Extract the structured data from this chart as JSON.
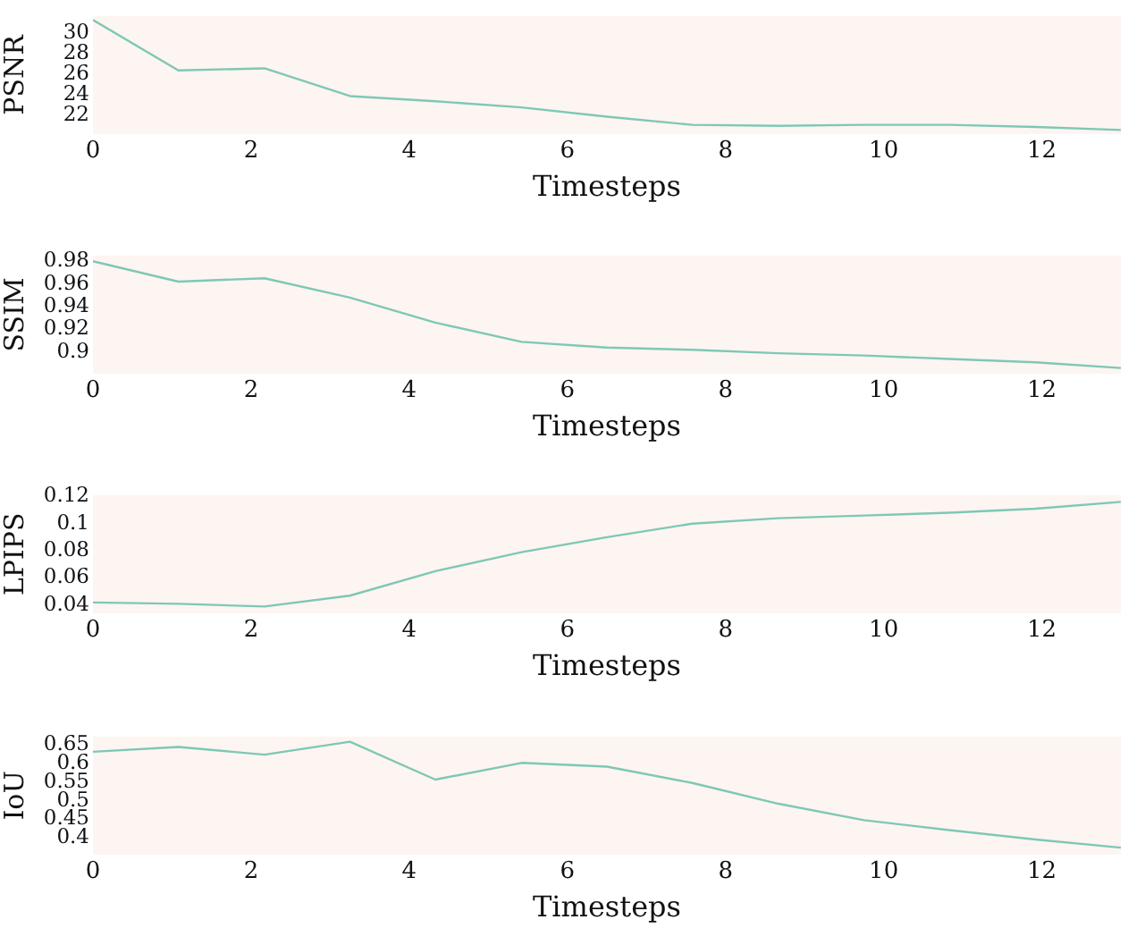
{
  "chart_data": [
    {
      "type": "line",
      "xlabel": "Timesteps",
      "ylabel": "PSNR",
      "x": [
        0,
        1.08,
        2.17,
        3.25,
        4.33,
        5.42,
        6.5,
        7.58,
        8.67,
        9.75,
        10.83,
        11.92,
        13
      ],
      "series": [
        {
          "color": "#7ec8b4",
          "values": [
            31.3,
            26.4,
            26.6,
            23.9,
            23.4,
            22.8,
            21.9,
            21.1,
            21.0,
            21.1,
            21.1,
            20.9,
            20.6
          ]
        }
      ],
      "xlim": [
        0,
        13
      ],
      "xticks": [
        0,
        2,
        4,
        6,
        8,
        10,
        12
      ],
      "ylim": [
        20.2,
        31.7
      ],
      "yticks": [
        22,
        24,
        26,
        28,
        30
      ],
      "grid": false,
      "legend": false,
      "marker": "none",
      "line_style": "solid"
    },
    {
      "type": "line",
      "xlabel": "Timesteps",
      "ylabel": "SSIM",
      "x": [
        0,
        1.08,
        2.17,
        3.25,
        4.33,
        5.42,
        6.5,
        7.58,
        8.67,
        9.75,
        10.83,
        11.92,
        13
      ],
      "series": [
        {
          "color": "#7ec8b4",
          "values": [
            0.98,
            0.962,
            0.965,
            0.948,
            0.926,
            0.909,
            0.904,
            0.902,
            0.899,
            0.897,
            0.894,
            0.891,
            0.886
          ]
        }
      ],
      "xlim": [
        0,
        13
      ],
      "xticks": [
        0,
        2,
        4,
        6,
        8,
        10,
        12
      ],
      "ylim": [
        0.881,
        0.985
      ],
      "yticks": [
        0.9,
        0.92,
        0.94,
        0.96,
        0.98
      ],
      "grid": false,
      "legend": false,
      "marker": "none",
      "line_style": "solid"
    },
    {
      "type": "line",
      "xlabel": "Timesteps",
      "ylabel": "LPIPS",
      "x": [
        0,
        1.08,
        2.17,
        3.25,
        4.33,
        5.42,
        6.5,
        7.58,
        8.67,
        9.75,
        10.83,
        11.92,
        13
      ],
      "series": [
        {
          "color": "#7ec8b4",
          "values": [
            0.042,
            0.041,
            0.039,
            0.047,
            0.065,
            0.079,
            0.09,
            0.1,
            0.104,
            0.106,
            0.108,
            0.111,
            0.116
          ]
        }
      ],
      "xlim": [
        0,
        13
      ],
      "xticks": [
        0,
        2,
        4,
        6,
        8,
        10,
        12
      ],
      "ylim": [
        0.034,
        0.121
      ],
      "yticks": [
        0.04,
        0.06,
        0.08,
        0.1,
        0.12
      ],
      "grid": false,
      "legend": false,
      "marker": "none",
      "line_style": "solid"
    },
    {
      "type": "line",
      "xlabel": "Timesteps",
      "ylabel": "IoU",
      "x": [
        0,
        1.08,
        2.17,
        3.25,
        4.33,
        5.42,
        6.5,
        7.58,
        8.67,
        9.75,
        10.83,
        11.92,
        13
      ],
      "series": [
        {
          "color": "#7ec8b4",
          "values": [
            0.632,
            0.645,
            0.624,
            0.659,
            0.557,
            0.602,
            0.592,
            0.548,
            0.492,
            0.448,
            0.421,
            0.396,
            0.374
          ]
        }
      ],
      "xlim": [
        0,
        13
      ],
      "xticks": [
        0,
        2,
        4,
        6,
        8,
        10,
        12
      ],
      "ylim": [
        0.355,
        0.673
      ],
      "yticks": [
        0.4,
        0.45,
        0.5,
        0.55,
        0.6,
        0.65
      ],
      "grid": false,
      "legend": false,
      "marker": "none",
      "line_style": "solid"
    }
  ]
}
